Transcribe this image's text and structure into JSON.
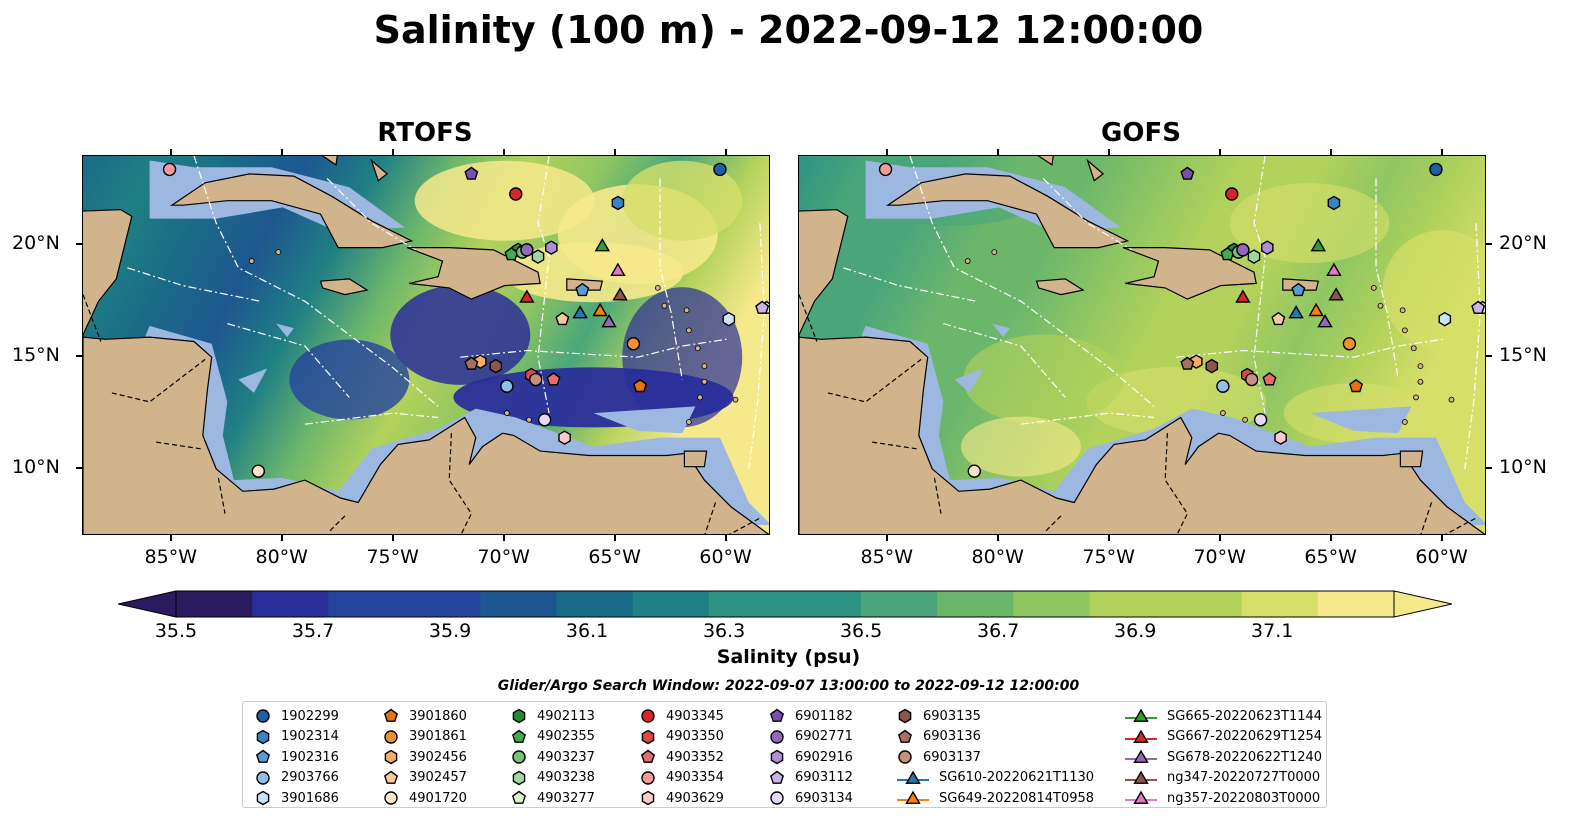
{
  "title": "Salinity (100 m) - 2022-09-12 12:00:00",
  "panels": [
    {
      "title": "RTOFS"
    },
    {
      "title": "GOFS"
    }
  ],
  "axes": {
    "lon_ticks": [
      "85°W",
      "80°W",
      "75°W",
      "70°W",
      "65°W",
      "60°W"
    ],
    "lat_ticks": [
      "20°N",
      "15°N",
      "10°N"
    ],
    "lon_range": [
      -89,
      -58
    ],
    "lat_range": [
      7,
      24
    ]
  },
  "colorbar": {
    "label": "Salinity (psu)",
    "tick_labels": [
      "35.5",
      "35.7",
      "35.9",
      "36.1",
      "36.3",
      "36.5",
      "36.7",
      "36.9",
      "37.1"
    ],
    "range": [
      35.5,
      37.1
    ],
    "colormap_stops": [
      "#2a1a5e",
      "#2a2e9a",
      "#26449e",
      "#1e5790",
      "#1a6b86",
      "#1f7f84",
      "#2d9382",
      "#4aa67a",
      "#6cb66c",
      "#8fc662",
      "#b3d25c",
      "#d6df6a",
      "#f6e98c"
    ]
  },
  "legend": {
    "title": "Glider/Argo Search Window: 2022-09-07 13:00:00 to 2022-09-12 12:00:00",
    "items": [
      {
        "label": "1902299",
        "marker": "circle",
        "color": "#1f5fa8"
      },
      {
        "label": "1902314",
        "marker": "hexagon",
        "color": "#3b82c4"
      },
      {
        "label": "1902316",
        "marker": "pentagon",
        "color": "#5b9bd5"
      },
      {
        "label": "2903766",
        "marker": "circle",
        "color": "#8fbfe8"
      },
      {
        "label": "3901686",
        "marker": "hexagon",
        "color": "#cde3f6"
      },
      {
        "label": "3901860",
        "marker": "pentagon",
        "color": "#e8720c"
      },
      {
        "label": "3901861",
        "marker": "circle",
        "color": "#f39033"
      },
      {
        "label": "3902456",
        "marker": "hexagon",
        "color": "#f7ad68"
      },
      {
        "label": "3902457",
        "marker": "pentagon",
        "color": "#fbc99a"
      },
      {
        "label": "4901720",
        "marker": "circle",
        "color": "#fde3c8"
      },
      {
        "label": "4902113",
        "marker": "hexagon",
        "color": "#238b2f"
      },
      {
        "label": "4902355",
        "marker": "pentagon",
        "color": "#41ab4d"
      },
      {
        "label": "4903237",
        "marker": "circle",
        "color": "#74c476"
      },
      {
        "label": "4903238",
        "marker": "hexagon",
        "color": "#a1d99b"
      },
      {
        "label": "4903277",
        "marker": "pentagon",
        "color": "#d7f2cf"
      },
      {
        "label": "4903345",
        "marker": "circle",
        "color": "#d62728"
      },
      {
        "label": "4903350",
        "marker": "hexagon",
        "color": "#e04848"
      },
      {
        "label": "4903352",
        "marker": "pentagon",
        "color": "#ea6b6b"
      },
      {
        "label": "4903354",
        "marker": "circle",
        "color": "#f49a9a"
      },
      {
        "label": "4903629",
        "marker": "hexagon",
        "color": "#fbcaca"
      },
      {
        "label": "6901182",
        "marker": "pentagon",
        "color": "#7b4fae"
      },
      {
        "label": "6902771",
        "marker": "circle",
        "color": "#9467bd"
      },
      {
        "label": "6902916",
        "marker": "hexagon",
        "color": "#af8fd4"
      },
      {
        "label": "6903112",
        "marker": "pentagon",
        "color": "#cbb4e6"
      },
      {
        "label": "6903134",
        "marker": "circle",
        "color": "#e6d9f5"
      },
      {
        "label": "6903135",
        "marker": "hexagon",
        "color": "#8c564b"
      },
      {
        "label": "6903136",
        "marker": "pentagon",
        "color": "#a8705f"
      },
      {
        "label": "6903137",
        "marker": "circle",
        "color": "#c49080"
      },
      {
        "label": "SG610-20220621T1130",
        "marker": "triangle-line",
        "color": "#1f77b4"
      },
      {
        "label": "SG649-20220814T0958",
        "marker": "triangle-line",
        "color": "#ff7f0e"
      },
      {
        "label": "SG665-20220623T1144",
        "marker": "triangle-line",
        "color": "#2ca02c"
      },
      {
        "label": "SG667-20220629T1254",
        "marker": "triangle-line",
        "color": "#d62728"
      },
      {
        "label": "SG678-20220622T1240",
        "marker": "triangle-line",
        "color": "#9467bd"
      },
      {
        "label": "ng347-20220727T0000",
        "marker": "triangle-line",
        "color": "#8c564b"
      },
      {
        "label": "ng357-20220803T0000",
        "marker": "triangle-line",
        "color": "#e377c2"
      }
    ]
  },
  "observations": [
    {
      "id": "1902299",
      "lon": -60.3,
      "lat": 23.4
    },
    {
      "id": "1902314",
      "lon": -64.9,
      "lat": 21.9
    },
    {
      "id": "1902316",
      "lon": -66.5,
      "lat": 18.0
    },
    {
      "id": "2903766",
      "lon": -69.9,
      "lat": 13.7
    },
    {
      "id": "3901686",
      "lon": -59.9,
      "lat": 16.7
    },
    {
      "id": "3901860",
      "lon": -63.9,
      "lat": 13.7
    },
    {
      "id": "3901861",
      "lon": -64.2,
      "lat": 15.6
    },
    {
      "id": "3902456",
      "lon": -71.1,
      "lat": 14.8
    },
    {
      "id": "3902457",
      "lon": -67.4,
      "lat": 16.7
    },
    {
      "id": "4901720",
      "lon": -81.1,
      "lat": 9.9
    },
    {
      "id": "4902113",
      "lon": -69.4,
      "lat": 19.8
    },
    {
      "id": "4902355",
      "lon": -69.7,
      "lat": 19.6
    },
    {
      "id": "4903237",
      "lon": -69.2,
      "lat": 19.7
    },
    {
      "id": "4903238",
      "lon": -68.5,
      "lat": 19.5
    },
    {
      "id": "4903277",
      "lon": -58.2,
      "lat": 17.2
    },
    {
      "id": "4903345",
      "lon": -69.5,
      "lat": 22.3
    },
    {
      "id": "4903350",
      "lon": -68.8,
      "lat": 14.2
    },
    {
      "id": "4903352",
      "lon": -67.8,
      "lat": 14.0
    },
    {
      "id": "4903354",
      "lon": -85.1,
      "lat": 23.4
    },
    {
      "id": "4903629",
      "lon": -67.3,
      "lat": 11.4
    },
    {
      "id": "6901182",
      "lon": -71.5,
      "lat": 23.2
    },
    {
      "id": "6902771",
      "lon": -69.0,
      "lat": 19.8
    },
    {
      "id": "6902916",
      "lon": -67.9,
      "lat": 19.9
    },
    {
      "id": "6903112",
      "lon": -58.4,
      "lat": 17.2
    },
    {
      "id": "6903134",
      "lon": -68.2,
      "lat": 12.2
    },
    {
      "id": "6903135",
      "lon": -70.4,
      "lat": 14.6
    },
    {
      "id": "6903136",
      "lon": -71.5,
      "lat": 14.7
    },
    {
      "id": "6903137",
      "lon": -68.6,
      "lat": 14.0
    },
    {
      "id": "SG610-20220621T1130",
      "lon": -66.6,
      "lat": 17.0
    },
    {
      "id": "SG649-20220814T0958",
      "lon": -65.7,
      "lat": 17.1
    },
    {
      "id": "SG665-20220623T1144",
      "lon": -65.6,
      "lat": 20.0
    },
    {
      "id": "SG667-20220629T1254",
      "lon": -69.0,
      "lat": 17.7
    },
    {
      "id": "SG678-20220622T1240",
      "lon": -65.3,
      "lat": 16.6
    },
    {
      "id": "ng347-20220727T0000",
      "lon": -64.8,
      "lat": 17.8
    },
    {
      "id": "ng357-20220803T0000",
      "lon": -64.9,
      "lat": 18.9
    }
  ]
}
